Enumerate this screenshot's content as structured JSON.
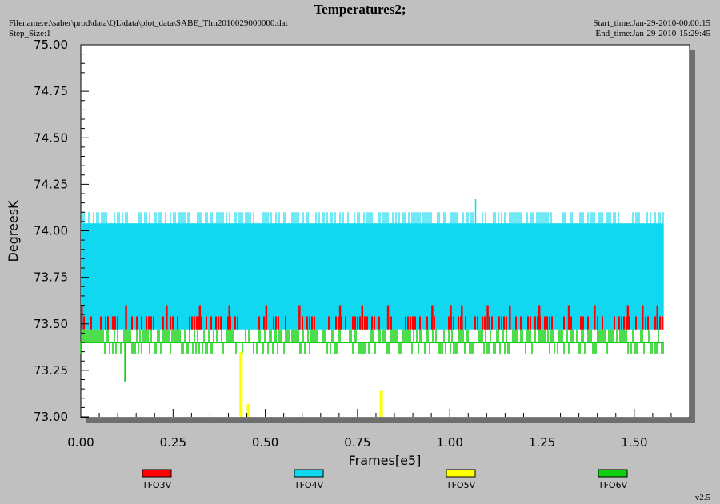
{
  "header": {
    "title": "Temperatures2;",
    "filename": "Filename:e:\\saber\\prod\\data\\QL\\data\\plot_data\\SABE_Tlm2010029000000.dat",
    "step_size": "Step_Size:1",
    "start_time": "Start_time:Jan-29-2010-00:00:15",
    "end_time": "End_time:Jan-29-2010-15:29:45",
    "version": "v2.5"
  },
  "chart_data": {
    "type": "line",
    "title": "Temperatures2;",
    "xlabel": "Frames[e5]",
    "ylabel": "DegreesK",
    "xlim": [
      0,
      1.65
    ],
    "ylim": [
      73.0,
      75.0
    ],
    "x_ticks": [
      "0.00",
      "0.25",
      "0.50",
      "0.75",
      "1.00",
      "1.25",
      "1.50"
    ],
    "y_ticks": [
      "73.00",
      "73.25",
      "73.50",
      "73.75",
      "74.00",
      "74.25",
      "74.50",
      "74.75",
      "75.00"
    ],
    "legend_placement": "bottom",
    "grid": false,
    "series": [
      {
        "name": "TFO3V",
        "color": "#ff0000",
        "style": "band",
        "x_range": [
          0.0,
          1.58
        ],
        "low": 73.47,
        "high": 73.54,
        "spike_high": 73.6,
        "spikes_x": [
          0.0,
          0.12,
          0.23,
          0.32,
          0.4,
          0.5,
          0.59,
          0.7,
          0.76,
          0.83,
          0.95,
          1.0,
          1.03,
          1.1,
          1.16,
          1.24,
          1.32,
          1.39,
          1.48,
          1.52,
          1.56
        ]
      },
      {
        "name": "TFO4V",
        "color": "#10d8f0",
        "style": "band",
        "x_range": [
          0.0,
          1.58
        ],
        "low": 73.47,
        "high": 74.04,
        "spike_high": 74.1,
        "max": {
          "x": 1.07,
          "y": 74.17
        }
      },
      {
        "name": "TFO5V",
        "color": "#ffff00",
        "style": "spikes",
        "baseline": 73.0,
        "points": [
          {
            "x": 0.43,
            "y": 73.35
          },
          {
            "x": 0.45,
            "y": 73.07
          },
          {
            "x": 0.81,
            "y": 73.14
          }
        ]
      },
      {
        "name": "TFO6V",
        "color": "#10d010",
        "style": "band",
        "x_range": [
          0.0,
          1.58
        ],
        "low": 73.34,
        "high": 73.47,
        "level": 73.4,
        "dip": {
          "x": 0.12,
          "y": 73.19
        },
        "start_dip": {
          "x": 0.0,
          "y": 73.1
        }
      }
    ]
  }
}
